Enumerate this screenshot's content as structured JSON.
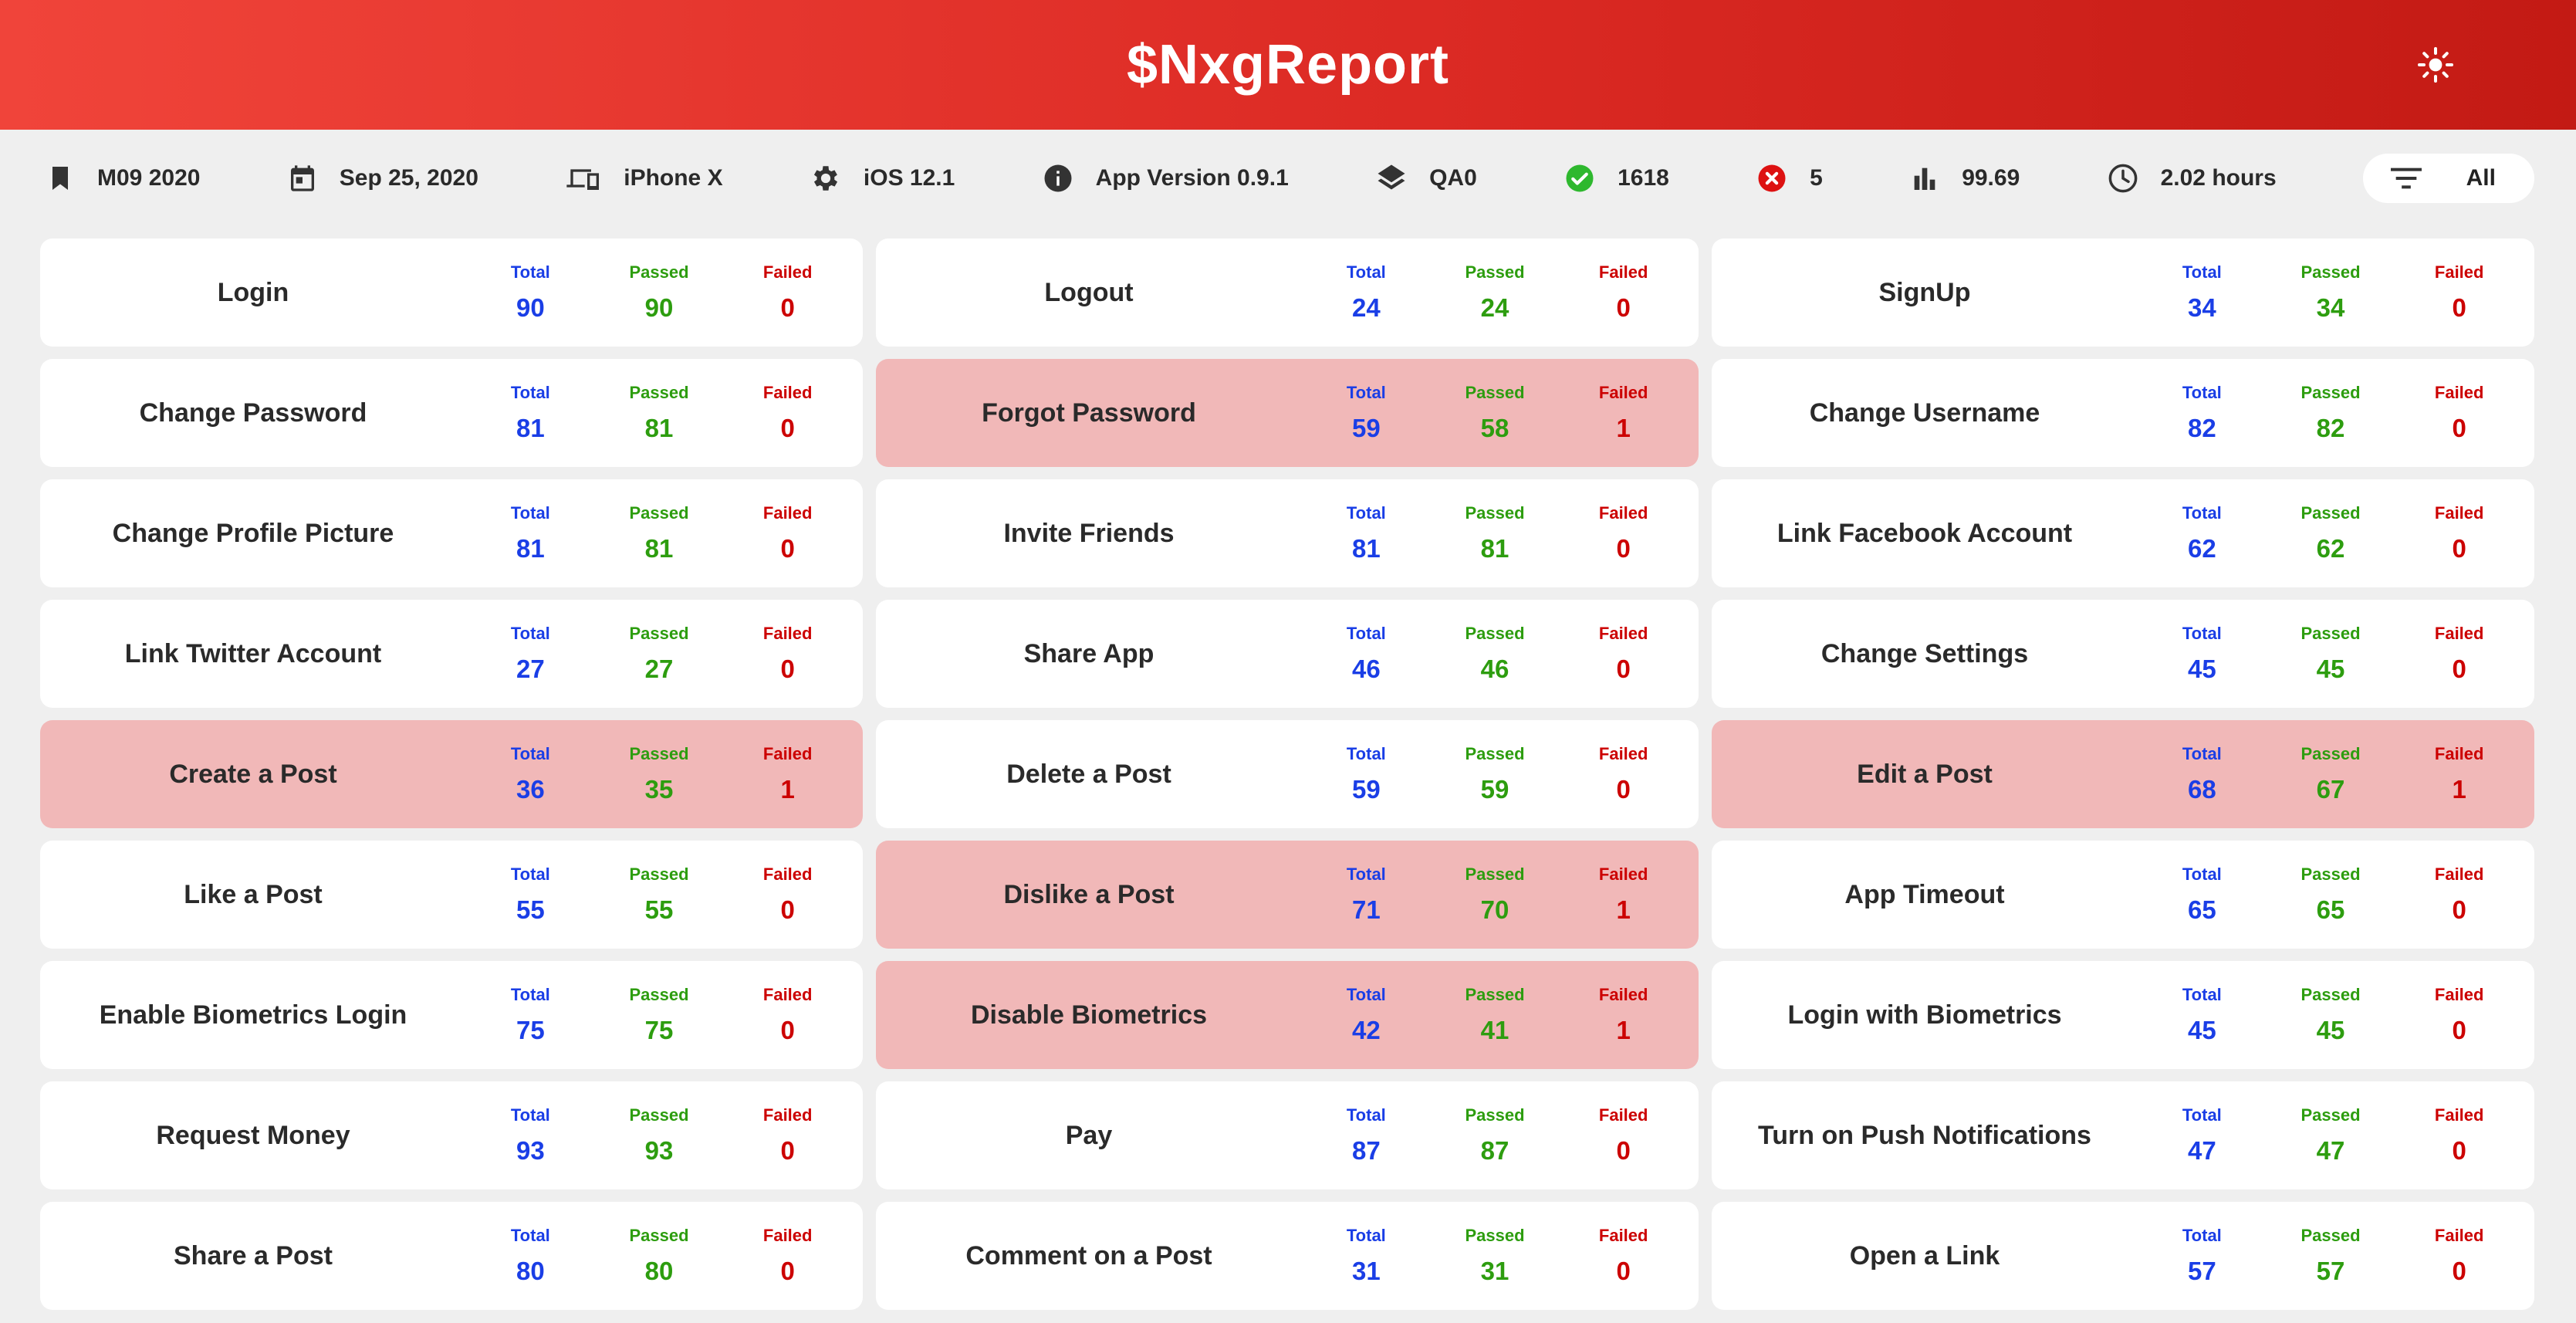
{
  "header": {
    "title": "$NxgReport",
    "theme_icon": "sun-icon"
  },
  "info": {
    "release": "M09 2020",
    "date": "Sep 25, 2020",
    "device": "iPhone X",
    "os": "iOS 12.1",
    "app_version": "App Version 0.9.1",
    "environment": "QA0",
    "passed": "1618",
    "failed": "5",
    "pass_rate": "99.69",
    "duration": "2.02 hours",
    "filter": "All"
  },
  "labels": {
    "total": "Total",
    "passed": "Passed",
    "failed": "Failed"
  },
  "colors": {
    "header_red": "#dc2a24",
    "total": "#1a3ee6",
    "passed": "#2d9d0f",
    "failed": "#cc0000",
    "fail_card": "#f1b8b8",
    "pass_icon": "#2eb82e",
    "fail_icon": "#dd1111"
  },
  "features": [
    {
      "name": "Login",
      "total": "90",
      "passed": "90",
      "failed": "0"
    },
    {
      "name": "Logout",
      "total": "24",
      "passed": "24",
      "failed": "0"
    },
    {
      "name": "SignUp",
      "total": "34",
      "passed": "34",
      "failed": "0"
    },
    {
      "name": "Change Password",
      "total": "81",
      "passed": "81",
      "failed": "0"
    },
    {
      "name": "Forgot Password",
      "total": "59",
      "passed": "58",
      "failed": "1"
    },
    {
      "name": "Change Username",
      "total": "82",
      "passed": "82",
      "failed": "0"
    },
    {
      "name": "Change Profile Picture",
      "total": "81",
      "passed": "81",
      "failed": "0"
    },
    {
      "name": "Invite Friends",
      "total": "81",
      "passed": "81",
      "failed": "0"
    },
    {
      "name": "Link Facebook Account",
      "total": "62",
      "passed": "62",
      "failed": "0"
    },
    {
      "name": "Link Twitter Account",
      "total": "27",
      "passed": "27",
      "failed": "0"
    },
    {
      "name": "Share App",
      "total": "46",
      "passed": "46",
      "failed": "0"
    },
    {
      "name": "Change Settings",
      "total": "45",
      "passed": "45",
      "failed": "0"
    },
    {
      "name": "Create a Post",
      "total": "36",
      "passed": "35",
      "failed": "1"
    },
    {
      "name": "Delete a Post",
      "total": "59",
      "passed": "59",
      "failed": "0"
    },
    {
      "name": "Edit a Post",
      "total": "68",
      "passed": "67",
      "failed": "1"
    },
    {
      "name": "Like a Post",
      "total": "55",
      "passed": "55",
      "failed": "0"
    },
    {
      "name": "Dislike a Post",
      "total": "71",
      "passed": "70",
      "failed": "1"
    },
    {
      "name": "App Timeout",
      "total": "65",
      "passed": "65",
      "failed": "0"
    },
    {
      "name": "Enable Biometrics Login",
      "total": "75",
      "passed": "75",
      "failed": "0"
    },
    {
      "name": "Disable Biometrics",
      "total": "42",
      "passed": "41",
      "failed": "1"
    },
    {
      "name": "Login with Biometrics",
      "total": "45",
      "passed": "45",
      "failed": "0"
    },
    {
      "name": "Request Money",
      "total": "93",
      "passed": "93",
      "failed": "0"
    },
    {
      "name": "Pay",
      "total": "87",
      "passed": "87",
      "failed": "0"
    },
    {
      "name": "Turn on Push Notifications",
      "total": "47",
      "passed": "47",
      "failed": "0"
    },
    {
      "name": "Share a Post",
      "total": "80",
      "passed": "80",
      "failed": "0"
    },
    {
      "name": "Comment on a Post",
      "total": "31",
      "passed": "31",
      "failed": "0"
    },
    {
      "name": "Open a Link",
      "total": "57",
      "passed": "57",
      "failed": "0"
    }
  ]
}
